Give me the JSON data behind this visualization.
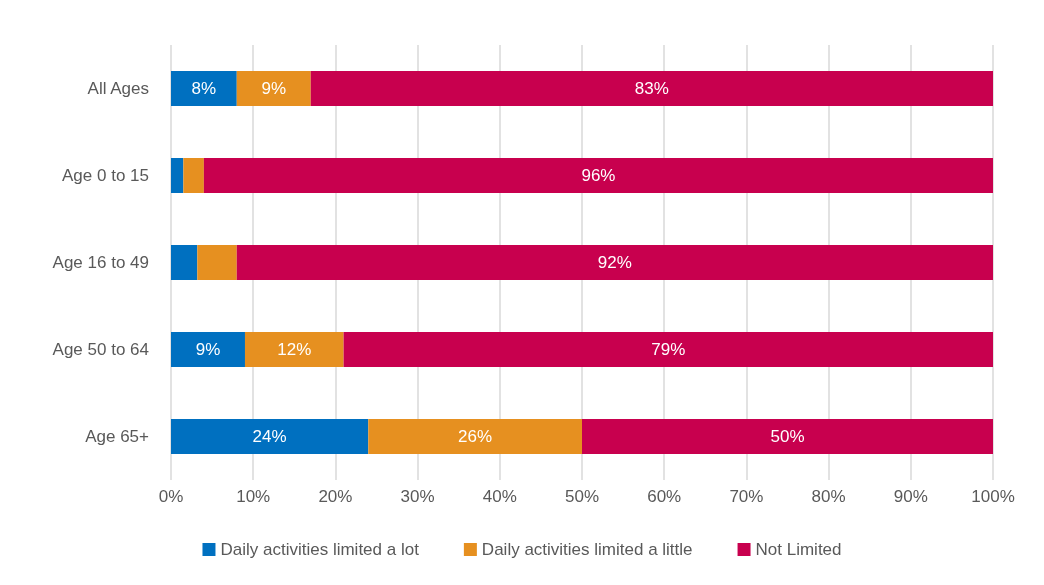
{
  "chart_data": {
    "type": "bar",
    "orientation": "horizontal",
    "stacked": true,
    "categories": [
      "All Ages",
      "Age 0 to 15",
      "Age 16 to 49",
      "Age 50 to 64",
      "Age 65+"
    ],
    "series": [
      {
        "name": "Daily activities limited a lot",
        "color": "#0070c0",
        "values": [
          8,
          1.5,
          3.2,
          9,
          24
        ],
        "value_labels": [
          "8%",
          null,
          null,
          "9%",
          "24%"
        ]
      },
      {
        "name": "Daily activities limited a little",
        "color": "#e69020",
        "values": [
          9,
          2.5,
          4.8,
          12,
          26
        ],
        "value_labels": [
          "9%",
          null,
          null,
          "12%",
          "26%"
        ]
      },
      {
        "name": "Not Limited",
        "color": "#c8004e",
        "values": [
          83,
          96,
          92,
          79,
          50
        ],
        "value_labels": [
          "83%",
          "96%",
          "92%",
          "79%",
          "50%"
        ]
      }
    ],
    "xlim": [
      0,
      100
    ],
    "xticks": [
      {
        "value": 0,
        "label": "0%"
      },
      {
        "value": 10,
        "label": "10%"
      },
      {
        "value": 20,
        "label": "20%"
      },
      {
        "value": 30,
        "label": "30%"
      },
      {
        "value": 40,
        "label": "40%"
      },
      {
        "value": 50,
        "label": "50%"
      },
      {
        "value": 60,
        "label": "60%"
      },
      {
        "value": 70,
        "label": "70%"
      },
      {
        "value": 80,
        "label": "80%"
      },
      {
        "value": 90,
        "label": "90%"
      },
      {
        "value": 100,
        "label": "100%"
      }
    ],
    "grid": "x",
    "legend": "bottom"
  }
}
